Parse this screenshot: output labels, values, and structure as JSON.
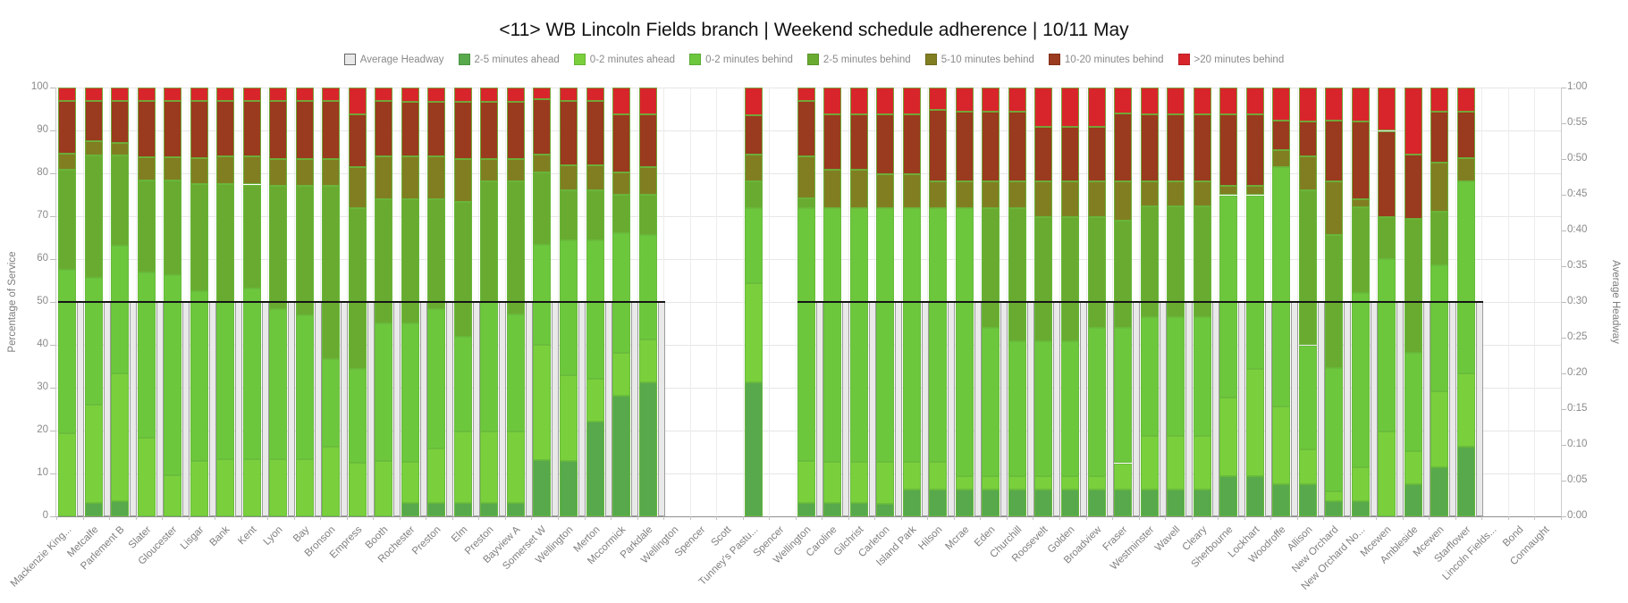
{
  "title": "<11> WB Lincoln Fields branch | Weekend schedule adherence | 10/11 May",
  "legend": {
    "items": [
      {
        "label": "Average Headway",
        "color": "#e8e8e8",
        "border": "#666666"
      },
      {
        "label": "2-5 minutes ahead",
        "color": "#57a94c",
        "border": "#4c9342"
      },
      {
        "label": "0-2 minutes ahead",
        "color": "#79d03c",
        "border": "#67b334"
      },
      {
        "label": "0-2 minutes behind",
        "color": "#6cc73d",
        "border": "#5cab34"
      },
      {
        "label": "2-5 minutes behind",
        "color": "#69ab31",
        "border": "#59922a"
      },
      {
        "label": "5-10 minutes behind",
        "color": "#817e22",
        "border": "#6d6a1d"
      },
      {
        "label": "10-20 minutes behind",
        "color": "#9a3a1e",
        "border": "#83311a"
      },
      {
        "label": ">20 minutes behind",
        "color": "#d8252b",
        "border": "#b81f24"
      }
    ]
  },
  "axes": {
    "left": {
      "title": "Percentage of Service",
      "ticks": [
        0,
        10,
        20,
        30,
        40,
        50,
        60,
        70,
        80,
        90,
        100
      ]
    },
    "right": {
      "title": "Average Headway",
      "ticks": [
        "0:00",
        "0:05",
        "0:10",
        "0:15",
        "0:20",
        "0:25",
        "0:30",
        "0:35",
        "0:40",
        "0:45",
        "0:50",
        "0:55",
        "1:00"
      ]
    }
  },
  "chart_data": {
    "type": "bar",
    "stacked": true,
    "stack_total": 100,
    "title": "<11> WB Lincoln Fields branch | Weekend schedule adherence | 10/11 May",
    "xlabel": "",
    "ylabel_left": "Percentage of Service",
    "ylabel_right": "Average Headway",
    "ylim_left": [
      0,
      100
    ],
    "right_axis_range": [
      "0:00",
      "1:00"
    ],
    "grid": true,
    "legend_position": "top",
    "segment_order": [
      "2-5 minutes ahead",
      "0-2 minutes ahead",
      "0-2 minutes behind",
      "2-5 minutes behind",
      "5-10 minutes behind",
      "10-20 minutes behind",
      ">20 minutes behind"
    ],
    "segment_colors": [
      "#57a94c",
      "#79d03c",
      "#6cc73d",
      "#69ab31",
      "#817e22",
      "#9a3a1e",
      "#d8252b"
    ],
    "average_headway_series": {
      "label": "Average Headway",
      "display_value": "0:30",
      "percent_equivalent": 50,
      "bar_color": "#e9e9e9",
      "line_color": "#141414"
    },
    "stations": [
      {
        "name": "Mackenzie King...",
        "segments": [
          0,
          19.4,
          38.1,
          23.3,
          3.8,
          12.3,
          3.1
        ],
        "headway": "0:30"
      },
      {
        "name": "Metcalfe",
        "segments": [
          3.2,
          22.8,
          29.7,
          28.5,
          3.4,
          9.3,
          3.1
        ],
        "headway": "0:30"
      },
      {
        "name": "Parlement B",
        "segments": [
          3.5,
          29.8,
          29.8,
          21.1,
          2.9,
          9.8,
          3.1
        ],
        "headway": "0:30"
      },
      {
        "name": "Slater",
        "segments": [
          0,
          18.3,
          38.6,
          21.5,
          5.4,
          13.1,
          3.1
        ],
        "headway": "0:30"
      },
      {
        "name": "Gloucester",
        "segments": [
          0,
          9.5,
          46.7,
          22.2,
          5.4,
          13.1,
          3.1
        ],
        "headway": "0:30"
      },
      {
        "name": "Lisgar",
        "segments": [
          0,
          13,
          39.5,
          24.9,
          6.1,
          13.4,
          3.1
        ],
        "headway": "0:30"
      },
      {
        "name": "Bank",
        "segments": [
          0,
          13.3,
          36.7,
          27.4,
          6.6,
          12.9,
          3.1
        ],
        "headway": "0:30"
      },
      {
        "name": "Kent",
        "segments": [
          0,
          13.3,
          39.8,
          24.3,
          6.6,
          12.9,
          3.1
        ],
        "headway": "0:30"
      },
      {
        "name": "Lyon",
        "segments": [
          0,
          13.3,
          35,
          28.8,
          6.3,
          13.5,
          3.1
        ],
        "headway": "0:30"
      },
      {
        "name": "Bay",
        "segments": [
          0,
          13.3,
          33.5,
          30.3,
          6.3,
          13.5,
          3.1
        ],
        "headway": "0:30"
      },
      {
        "name": "Bronson",
        "segments": [
          0,
          16.3,
          20.4,
          40.4,
          6.3,
          13.5,
          3.1
        ],
        "headway": "0:30"
      },
      {
        "name": "Empress",
        "segments": [
          0,
          12.4,
          22,
          37.5,
          9.6,
          12.3,
          6.2
        ],
        "headway": "0:30"
      },
      {
        "name": "Booth",
        "segments": [
          0,
          12.9,
          32.2,
          28.9,
          9.9,
          13,
          3.1
        ],
        "headway": "0:30"
      },
      {
        "name": "Rochester",
        "segments": [
          3.1,
          9.7,
          32.3,
          28.9,
          9.9,
          12.8,
          3.3
        ],
        "headway": "0:30"
      },
      {
        "name": "Preston",
        "segments": [
          3.1,
          12.8,
          32.4,
          25.7,
          9.9,
          12.8,
          3.3
        ],
        "headway": "0:30"
      },
      {
        "name": "Elm",
        "segments": [
          3.1,
          16.6,
          22.2,
          31.4,
          10.1,
          13.3,
          3.3
        ],
        "headway": "0:30"
      },
      {
        "name": "Preston",
        "segments": [
          3.1,
          16.6,
          30.3,
          28.2,
          5.2,
          13.3,
          3.3
        ],
        "headway": "0:30"
      },
      {
        "name": "Bayview A",
        "segments": [
          3.1,
          16.6,
          27.4,
          31.1,
          5.2,
          13.3,
          3.3
        ],
        "headway": "0:30"
      },
      {
        "name": "Somerset W",
        "segments": [
          13.1,
          26.9,
          23.3,
          16.9,
          4.2,
          12.8,
          2.8
        ],
        "headway": "0:30"
      },
      {
        "name": "Wellington",
        "segments": [
          13,
          20,
          31.4,
          11.7,
          5.8,
          15,
          3.1
        ],
        "headway": "0:30"
      },
      {
        "name": "Merton",
        "segments": [
          22.1,
          10,
          32.2,
          11.7,
          5.8,
          15.1,
          3.1
        ],
        "headway": "0:30"
      },
      {
        "name": "Mccormick",
        "segments": [
          28.1,
          10,
          27.9,
          9.1,
          5.2,
          13.5,
          6.2
        ],
        "headway": "0:30"
      },
      {
        "name": "Parkdale",
        "segments": [
          31.2,
          10,
          24.5,
          9.4,
          6.4,
          12.3,
          6.2
        ],
        "headway": "0:30"
      },
      {
        "name": "Wellington",
        "segments": null,
        "headway": null
      },
      {
        "name": "Spencer",
        "segments": null,
        "headway": null
      },
      {
        "name": "Scott",
        "segments": null,
        "headway": null
      },
      {
        "name": "Tunney's Pastu...",
        "segments": [
          31.3,
          23,
          17.5,
          6.4,
          6.1,
          9.2,
          6.5
        ],
        "headway": null
      },
      {
        "name": "Spencer",
        "segments": null,
        "headway": null
      },
      {
        "name": "Wellington",
        "segments": [
          3.1,
          9.9,
          58.9,
          2.3,
          9.8,
          12.9,
          3.1
        ],
        "headway": "0:30"
      },
      {
        "name": "Caroline",
        "segments": [
          3.1,
          9.7,
          59,
          0,
          9,
          13,
          6.2
        ],
        "headway": "0:30"
      },
      {
        "name": "Gilchrist",
        "segments": [
          3.1,
          9.7,
          59,
          0,
          9,
          13,
          6.2
        ],
        "headway": "0:30"
      },
      {
        "name": "Carleton",
        "segments": [
          3,
          9.8,
          59,
          0,
          8,
          14,
          6.2
        ],
        "headway": "0:30"
      },
      {
        "name": "Island Park",
        "segments": [
          6.2,
          6.6,
          59,
          0,
          8,
          14,
          6.2
        ],
        "headway": "0:30"
      },
      {
        "name": "Hilson",
        "segments": [
          6.2,
          6.6,
          59,
          0,
          6.4,
          16.5,
          5.3
        ],
        "headway": "0:30"
      },
      {
        "name": "Mcrae",
        "segments": [
          6.2,
          3.1,
          62.5,
          0,
          6.4,
          16.2,
          5.6
        ],
        "headway": "0:30"
      },
      {
        "name": "Eden",
        "segments": [
          6.2,
          3.1,
          34.7,
          27.8,
          6.4,
          16.2,
          5.6
        ],
        "headway": "0:30"
      },
      {
        "name": "Churchill",
        "segments": [
          6.2,
          3.1,
          31.6,
          30.9,
          6.4,
          16.2,
          5.6
        ],
        "headway": "0:30"
      },
      {
        "name": "Roosevelt",
        "segments": [
          6.2,
          3.1,
          31.6,
          28.8,
          8.5,
          12.7,
          9.1
        ],
        "headway": "0:30"
      },
      {
        "name": "Golden",
        "segments": [
          6.2,
          3.1,
          31.6,
          28.8,
          8.5,
          12.7,
          9.1
        ],
        "headway": "0:30"
      },
      {
        "name": "Broadview",
        "segments": [
          6.2,
          3.1,
          34.7,
          25.7,
          8.5,
          12.7,
          9.1
        ],
        "headway": "0:30"
      },
      {
        "name": "Fraser",
        "segments": [
          6.2,
          6.2,
          31.5,
          25.1,
          9.1,
          15.9,
          6
        ],
        "headway": "0:30"
      },
      {
        "name": "Westminster",
        "segments": [
          6.2,
          12.5,
          27.8,
          25.7,
          5.9,
          15.7,
          6.2
        ],
        "headway": "0:30"
      },
      {
        "name": "Wavell",
        "segments": [
          6.2,
          12.5,
          27.8,
          25.7,
          5.9,
          15.7,
          6.2
        ],
        "headway": "0:30"
      },
      {
        "name": "Cleary",
        "segments": [
          6.2,
          12.5,
          27.8,
          25.7,
          5.9,
          15.7,
          6.2
        ],
        "headway": "0:30"
      },
      {
        "name": "Sherbourne",
        "segments": [
          9.3,
          18.4,
          47.2,
          0,
          2.1,
          16.8,
          6.2
        ],
        "headway": "0:30"
      },
      {
        "name": "Lockhart",
        "segments": [
          9.3,
          25,
          40.6,
          0,
          2.1,
          16.8,
          6.2
        ],
        "headway": "0:30"
      },
      {
        "name": "Woodroffe",
        "segments": [
          7.4,
          18.2,
          55.9,
          0,
          3.9,
          6.9,
          7.7
        ],
        "headway": "0:30"
      },
      {
        "name": "Allison",
        "segments": [
          7.6,
          8,
          24.3,
          36.1,
          8,
          8,
          8
        ],
        "headway": "0:30"
      },
      {
        "name": "New Orchard",
        "segments": [
          3.5,
          2.3,
          28.8,
          31,
          12.5,
          14.2,
          7.7
        ],
        "headway": "0:30"
      },
      {
        "name": "New Orchard No...",
        "segments": [
          3.5,
          7.9,
          40.6,
          20,
          1.9,
          18.1,
          8
        ],
        "headway": "0:30"
      },
      {
        "name": "Mcewen",
        "segments": [
          0,
          19.7,
          40.3,
          9.7,
          0,
          20.2,
          10.1
        ],
        "headway": "0:30"
      },
      {
        "name": "Ambleside",
        "segments": [
          7.6,
          7.6,
          22.9,
          31.3,
          0,
          14.9,
          15.7
        ],
        "headway": "0:30"
      },
      {
        "name": "Mcewen",
        "segments": [
          11.4,
          17.7,
          29.5,
          12.5,
          11.5,
          11.8,
          5.6
        ],
        "headway": "0:30"
      },
      {
        "name": "Starflower",
        "segments": [
          16.3,
          17,
          44.8,
          0,
          5.5,
          10.8,
          5.6
        ],
        "headway": "0:30"
      },
      {
        "name": "Lincoln Fields...",
        "segments": null,
        "headway": null
      },
      {
        "name": "Bond",
        "segments": null,
        "headway": null
      },
      {
        "name": "Connaught",
        "segments": null,
        "headway": null
      }
    ]
  }
}
